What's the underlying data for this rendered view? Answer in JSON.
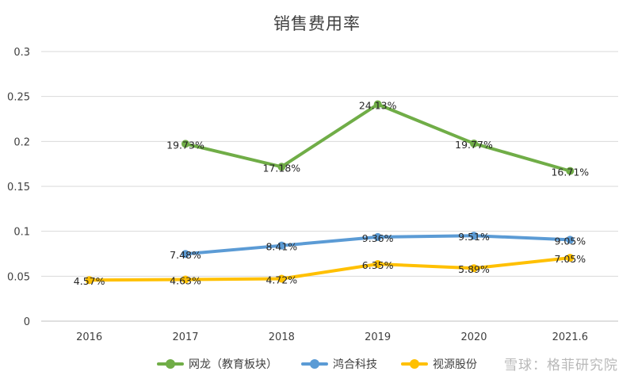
{
  "chart_data": {
    "type": "line",
    "title": "销售费用率",
    "xlabel": "",
    "ylabel": "",
    "categories": [
      "2016",
      "2017",
      "2018",
      "2019",
      "2020",
      "2021.6"
    ],
    "ylim": [
      0,
      0.3
    ],
    "yticks": [
      0,
      0.05,
      0.1,
      0.15,
      0.2,
      0.25,
      0.3
    ],
    "ytick_labels": [
      "0",
      "0.05",
      "0.1",
      "0.15",
      "0.2",
      "0.25",
      "0.3"
    ],
    "grid": true,
    "legend_position": "bottom",
    "series": [
      {
        "name": "网龙（教育板块）",
        "color": "#70AD47",
        "values": [
          null,
          0.1973,
          0.1718,
          0.2413,
          0.1977,
          0.1671
        ],
        "labels": [
          null,
          "19.73%",
          "17.18%",
          "24.13%",
          "19.77%",
          "16.71%"
        ]
      },
      {
        "name": "鸿合科技",
        "color": "#5B9BD5",
        "values": [
          null,
          0.0748,
          0.0841,
          0.0936,
          0.0951,
          0.0905
        ],
        "labels": [
          null,
          "7.48%",
          "8.41%",
          "9.36%",
          "9.51%",
          "9.05%"
        ]
      },
      {
        "name": "视源股份",
        "color": "#FFC000",
        "values": [
          0.0457,
          0.0463,
          0.0472,
          0.0635,
          0.0589,
          0.0705
        ],
        "labels": [
          "4.57%",
          "4.63%",
          "4.72%",
          "6.35%",
          "5.89%",
          "7.05%"
        ]
      }
    ]
  },
  "watermark": "雪球：格菲研究院"
}
